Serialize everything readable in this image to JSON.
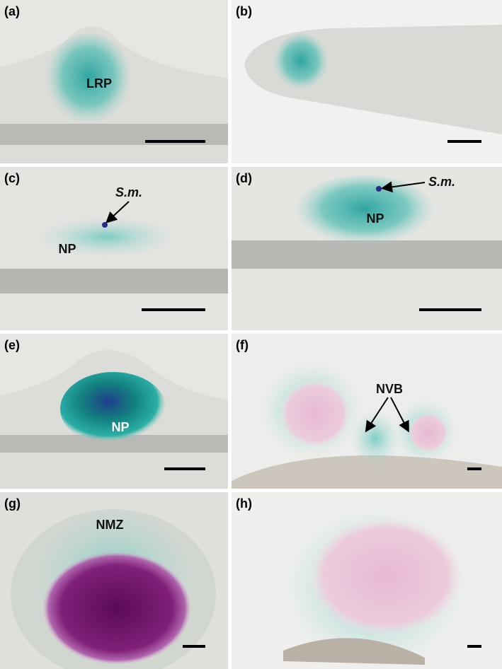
{
  "panels": [
    {
      "label": "(a)",
      "annotations": [
        "LRP"
      ]
    },
    {
      "label": "(b)"
    },
    {
      "label": "(c)",
      "annotations": [
        "S.m.",
        "NP"
      ]
    },
    {
      "label": "(d)",
      "annotations": [
        "S.m.",
        "NP"
      ]
    },
    {
      "label": "(e)",
      "annotations": [
        "NP"
      ]
    },
    {
      "label": "(f)",
      "annotations": [
        "NVB"
      ]
    },
    {
      "label": "(g)",
      "annotations": [
        "NMZ"
      ]
    },
    {
      "label": "(h)"
    }
  ]
}
